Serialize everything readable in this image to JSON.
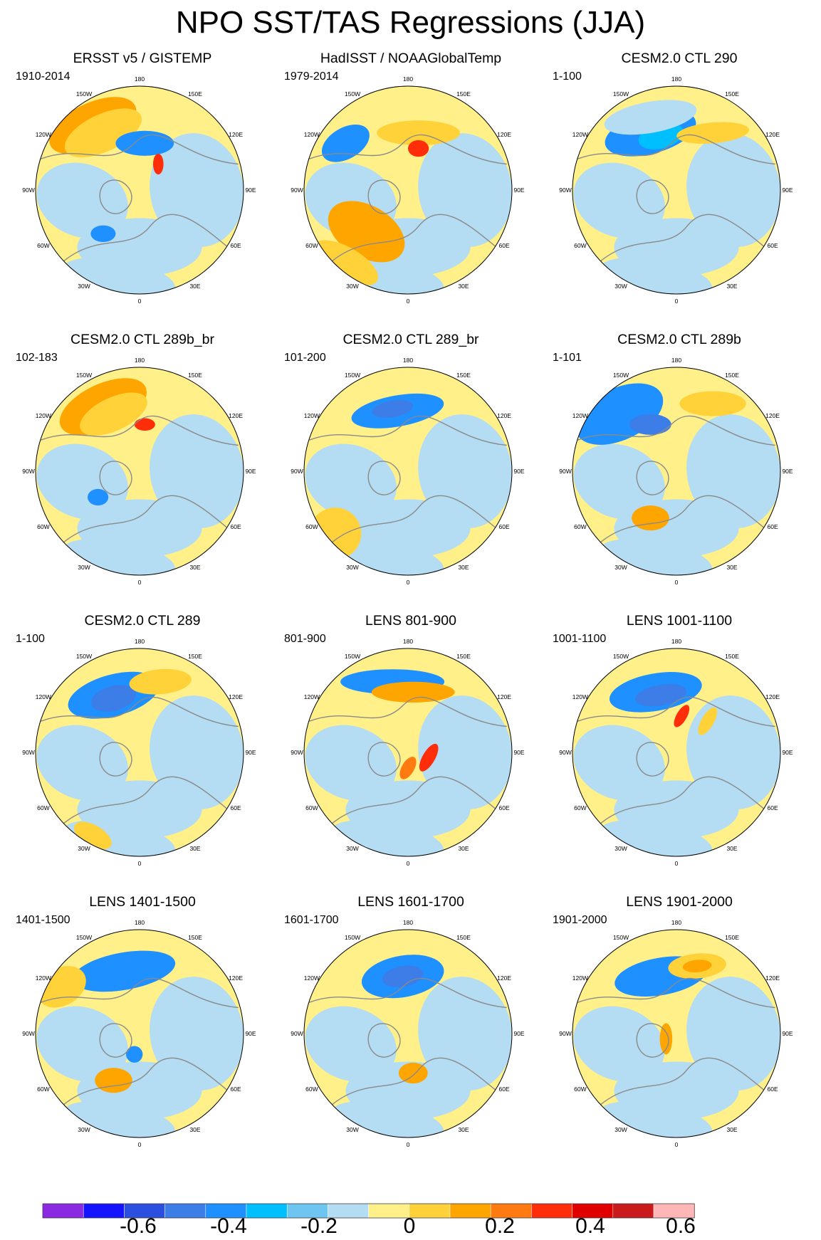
{
  "title": "NPO SST/TAS Regressions (JJA)",
  "colors": {
    "levels": [
      "#8a2be2",
      "#1414ff",
      "#2b4fde",
      "#3c7de8",
      "#1e90ff",
      "#00bfff",
      "#6ec5f0",
      "#b4dcf2",
      "#fff08a",
      "#ffd23a",
      "#ffa500",
      "#ff7a10",
      "#ff2d0a",
      "#e00000",
      "#c91b1b",
      "#ffb6b6"
    ],
    "land_outline": "#8a8a8a",
    "circle": "#000000"
  },
  "colorbar": {
    "labels": [
      "-0.6",
      "-0.4",
      "-0.2",
      "0",
      "0.2",
      "0.4",
      "0.6"
    ]
  },
  "lon_labels": [
    {
      "text": "180",
      "deg": 0
    },
    {
      "text": "150E",
      "deg": 30
    },
    {
      "text": "120E",
      "deg": 60
    },
    {
      "text": "90E",
      "deg": 90
    },
    {
      "text": "60E",
      "deg": 120
    },
    {
      "text": "30E",
      "deg": 150
    },
    {
      "text": "0",
      "deg": 180
    },
    {
      "text": "30W",
      "deg": 210
    },
    {
      "text": "60W",
      "deg": 240
    },
    {
      "text": "90W",
      "deg": 270
    },
    {
      "text": "120W",
      "deg": 300
    },
    {
      "text": "150W",
      "deg": 330
    }
  ],
  "panels": [
    {
      "title": "ERSST v5 / GISTEMP",
      "period": "1910-2014"
    },
    {
      "title": "HadISST / NOAAGlobalTemp",
      "period": "1979-2014"
    },
    {
      "title": "CESM2.0 CTL 290",
      "period": "1-100"
    },
    {
      "title": "CESM2.0 CTL 289b_br",
      "period": "102-183"
    },
    {
      "title": "CESM2.0 CTL 289_br",
      "period": "101-200"
    },
    {
      "title": "CESM2.0 CTL 289b",
      "period": "1-101"
    },
    {
      "title": "CESM2.0 CTL 289",
      "period": "1-100"
    },
    {
      "title": "LENS 801-900",
      "period": "801-900"
    },
    {
      "title": "LENS 1001-1100",
      "period": "1001-1100"
    },
    {
      "title": "LENS 1401-1500",
      "period": "1401-1500"
    },
    {
      "title": "LENS 1601-1700",
      "period": "1601-1700"
    },
    {
      "title": "LENS 1901-2000",
      "period": "1901-2000"
    }
  ]
}
